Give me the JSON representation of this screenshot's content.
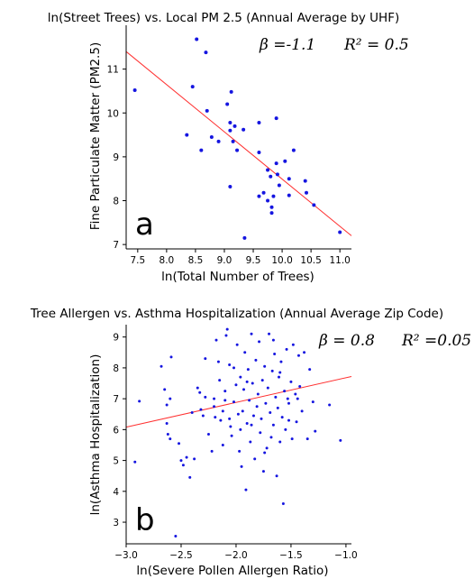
{
  "chart_data": [
    {
      "type": "scatter",
      "panel_letter": "a",
      "title": "ln(Street Trees) vs. Local PM 2.5 (Annual Average by UHF)",
      "xlabel": "ln(Total Number of Trees)",
      "ylabel": "Fine Particulate Matter (PM2.5)",
      "xlim": [
        7.3,
        11.2
      ],
      "ylim": [
        6.9,
        12.0
      ],
      "xticks": [
        7.5,
        8.0,
        8.5,
        9.0,
        9.5,
        10.0,
        10.5,
        11.0
      ],
      "xtick_labels": [
        "7.5",
        "8.0",
        "8.5",
        "9.0",
        "9.5",
        "10.0",
        "10.5",
        "11.0"
      ],
      "yticks": [
        7,
        8,
        9,
        10,
        11
      ],
      "ytick_labels": [
        "7",
        "8",
        "9",
        "10",
        "11"
      ],
      "annotations": {
        "beta_label": "β =-1.1",
        "r2_label": "R² = 0.5"
      },
      "point_color": "#1515e0",
      "fit_line": {
        "color": "#ff3030",
        "x": [
          7.3,
          11.2
        ],
        "y": [
          11.4,
          7.2
        ]
      },
      "points": [
        {
          "x": 7.45,
          "y": 10.52
        },
        {
          "x": 8.45,
          "y": 10.6
        },
        {
          "x": 8.52,
          "y": 11.68
        },
        {
          "x": 8.68,
          "y": 11.38
        },
        {
          "x": 8.7,
          "y": 10.05
        },
        {
          "x": 8.35,
          "y": 9.5
        },
        {
          "x": 8.6,
          "y": 9.15
        },
        {
          "x": 8.78,
          "y": 9.45
        },
        {
          "x": 8.9,
          "y": 9.35
        },
        {
          "x": 9.05,
          "y": 10.2
        },
        {
          "x": 9.12,
          "y": 10.48
        },
        {
          "x": 9.1,
          "y": 9.78
        },
        {
          "x": 9.1,
          "y": 9.6
        },
        {
          "x": 9.18,
          "y": 9.7
        },
        {
          "x": 9.15,
          "y": 9.35
        },
        {
          "x": 9.22,
          "y": 9.15
        },
        {
          "x": 9.33,
          "y": 9.62
        },
        {
          "x": 9.1,
          "y": 8.32
        },
        {
          "x": 9.35,
          "y": 7.15
        },
        {
          "x": 9.6,
          "y": 9.78
        },
        {
          "x": 9.6,
          "y": 9.1
        },
        {
          "x": 9.6,
          "y": 8.1
        },
        {
          "x": 9.68,
          "y": 8.18
        },
        {
          "x": 9.75,
          "y": 8.7
        },
        {
          "x": 9.8,
          "y": 8.55
        },
        {
          "x": 9.75,
          "y": 8.0
        },
        {
          "x": 9.82,
          "y": 7.85
        },
        {
          "x": 9.82,
          "y": 7.72
        },
        {
          "x": 9.85,
          "y": 8.1
        },
        {
          "x": 9.9,
          "y": 9.88
        },
        {
          "x": 9.9,
          "y": 8.85
        },
        {
          "x": 9.92,
          "y": 8.6
        },
        {
          "x": 9.95,
          "y": 8.35
        },
        {
          "x": 10.05,
          "y": 8.9
        },
        {
          "x": 10.12,
          "y": 8.5
        },
        {
          "x": 10.12,
          "y": 8.12
        },
        {
          "x": 10.2,
          "y": 9.15
        },
        {
          "x": 10.4,
          "y": 8.45
        },
        {
          "x": 10.42,
          "y": 8.18
        },
        {
          "x": 10.55,
          "y": 7.9
        },
        {
          "x": 11.0,
          "y": 7.28
        }
      ]
    },
    {
      "type": "scatter",
      "panel_letter": "b",
      "title": "Tree Allergen vs. Asthma Hospitalization (Annual Average Zip Code)",
      "xlabel": "ln(Severe Pollen Allergen Ratio)",
      "ylabel": "ln(Asthma Hospitalization)",
      "xlim": [
        -3.0,
        -0.95
      ],
      "ylim": [
        2.3,
        9.4
      ],
      "xticks": [
        -3.0,
        -2.5,
        -2.0,
        -1.5,
        -1.0
      ],
      "xtick_labels": [
        "−3.0",
        "−2.5",
        "−2.0",
        "−1.5",
        "−1.0"
      ],
      "yticks": [
        3,
        4,
        5,
        6,
        7,
        8,
        9
      ],
      "ytick_labels": [
        "3",
        "4",
        "5",
        "6",
        "7",
        "8",
        "9"
      ],
      "annotations": {
        "beta_label": "β = 0.8",
        "r2_label": "R² =0.05"
      },
      "point_color": "#1515e0",
      "fit_line": {
        "color": "#ff3030",
        "x": [
          -3.0,
          -0.95
        ],
        "y": [
          6.08,
          7.72
        ]
      },
      "points": [
        {
          "x": -2.92,
          "y": 4.95
        },
        {
          "x": -2.88,
          "y": 6.92
        },
        {
          "x": -2.68,
          "y": 8.05
        },
        {
          "x": -2.65,
          "y": 7.3
        },
        {
          "x": -2.63,
          "y": 6.8
        },
        {
          "x": -2.63,
          "y": 6.2
        },
        {
          "x": -2.62,
          "y": 5.85
        },
        {
          "x": -2.6,
          "y": 5.7
        },
        {
          "x": -2.6,
          "y": 7.0
        },
        {
          "x": -2.59,
          "y": 8.35
        },
        {
          "x": -2.55,
          "y": 2.55
        },
        {
          "x": -2.52,
          "y": 5.55
        },
        {
          "x": -2.5,
          "y": 5.0
        },
        {
          "x": -2.48,
          "y": 4.85
        },
        {
          "x": -2.45,
          "y": 5.1
        },
        {
          "x": -2.42,
          "y": 4.45
        },
        {
          "x": -2.4,
          "y": 6.55
        },
        {
          "x": -2.38,
          "y": 5.05
        },
        {
          "x": -2.35,
          "y": 7.35
        },
        {
          "x": -2.33,
          "y": 7.2
        },
        {
          "x": -2.32,
          "y": 6.65
        },
        {
          "x": -2.3,
          "y": 6.45
        },
        {
          "x": -2.28,
          "y": 7.05
        },
        {
          "x": -2.25,
          "y": 5.85
        },
        {
          "x": -2.22,
          "y": 5.3
        },
        {
          "x": -2.2,
          "y": 7.0
        },
        {
          "x": -2.19,
          "y": 6.4
        },
        {
          "x": -2.18,
          "y": 8.9
        },
        {
          "x": -2.16,
          "y": 8.2
        },
        {
          "x": -2.15,
          "y": 7.6
        },
        {
          "x": -2.14,
          "y": 6.3
        },
        {
          "x": -2.12,
          "y": 5.5
        },
        {
          "x": -2.1,
          "y": 6.95
        },
        {
          "x": -2.1,
          "y": 7.25
        },
        {
          "x": -2.09,
          "y": 9.05
        },
        {
          "x": -2.08,
          "y": 9.25
        },
        {
          "x": -2.06,
          "y": 8.1
        },
        {
          "x": -2.05,
          "y": 6.1
        },
        {
          "x": -2.04,
          "y": 5.8
        },
        {
          "x": -2.02,
          "y": 6.9
        },
        {
          "x": -2.0,
          "y": 7.45
        },
        {
          "x": -1.99,
          "y": 8.75
        },
        {
          "x": -1.98,
          "y": 6.5
        },
        {
          "x": -1.97,
          "y": 5.3
        },
        {
          "x": -1.96,
          "y": 7.7
        },
        {
          "x": -1.95,
          "y": 4.8
        },
        {
          "x": -1.94,
          "y": 6.6
        },
        {
          "x": -1.93,
          "y": 7.3
        },
        {
          "x": -1.92,
          "y": 8.5
        },
        {
          "x": -1.91,
          "y": 4.05
        },
        {
          "x": -1.9,
          "y": 6.2
        },
        {
          "x": -1.89,
          "y": 7.95
        },
        {
          "x": -1.88,
          "y": 6.95
        },
        {
          "x": -1.87,
          "y": 5.6
        },
        {
          "x": -1.86,
          "y": 9.1
        },
        {
          "x": -1.85,
          "y": 7.5
        },
        {
          "x": -1.84,
          "y": 6.45
        },
        {
          "x": -1.83,
          "y": 5.05
        },
        {
          "x": -1.82,
          "y": 8.25
        },
        {
          "x": -1.81,
          "y": 6.75
        },
        {
          "x": -1.8,
          "y": 7.15
        },
        {
          "x": -1.79,
          "y": 8.85
        },
        {
          "x": -1.78,
          "y": 5.9
        },
        {
          "x": -1.77,
          "y": 6.35
        },
        {
          "x": -1.76,
          "y": 7.6
        },
        {
          "x": -1.75,
          "y": 4.65
        },
        {
          "x": -1.74,
          "y": 8.05
        },
        {
          "x": -1.73,
          "y": 6.85
        },
        {
          "x": -1.72,
          "y": 5.4
        },
        {
          "x": -1.71,
          "y": 7.35
        },
        {
          "x": -1.7,
          "y": 9.1
        },
        {
          "x": -1.69,
          "y": 6.55
        },
        {
          "x": -1.68,
          "y": 5.75
        },
        {
          "x": -1.67,
          "y": 7.9
        },
        {
          "x": -1.66,
          "y": 6.15
        },
        {
          "x": -1.65,
          "y": 8.45
        },
        {
          "x": -1.64,
          "y": 7.05
        },
        {
          "x": -1.63,
          "y": 4.5
        },
        {
          "x": -1.62,
          "y": 6.7
        },
        {
          "x": -1.61,
          "y": 7.7
        },
        {
          "x": -1.6,
          "y": 5.6
        },
        {
          "x": -1.59,
          "y": 8.2
        },
        {
          "x": -1.58,
          "y": 6.4
        },
        {
          "x": -1.57,
          "y": 3.6
        },
        {
          "x": -1.56,
          "y": 7.25
        },
        {
          "x": -1.55,
          "y": 6.0
        },
        {
          "x": -1.54,
          "y": 8.6
        },
        {
          "x": -1.53,
          "y": 7.0
        },
        {
          "x": -1.52,
          "y": 6.85
        },
        {
          "x": -1.5,
          "y": 7.55
        },
        {
          "x": -1.49,
          "y": 5.7
        },
        {
          "x": -1.48,
          "y": 8.75
        },
        {
          "x": -1.46,
          "y": 7.15
        },
        {
          "x": -1.45,
          "y": 6.25
        },
        {
          "x": -1.43,
          "y": 8.4
        },
        {
          "x": -1.42,
          "y": 7.4
        },
        {
          "x": -1.4,
          "y": 6.6
        },
        {
          "x": -1.38,
          "y": 8.5
        },
        {
          "x": -1.35,
          "y": 5.7
        },
        {
          "x": -1.33,
          "y": 7.95
        },
        {
          "x": -1.3,
          "y": 6.9
        },
        {
          "x": -1.28,
          "y": 5.95
        },
        {
          "x": -1.15,
          "y": 6.8
        },
        {
          "x": -1.05,
          "y": 5.65
        },
        {
          "x": -2.28,
          "y": 8.3
        },
        {
          "x": -2.2,
          "y": 6.75
        },
        {
          "x": -2.02,
          "y": 8.0
        },
        {
          "x": -1.96,
          "y": 6.0
        },
        {
          "x": -1.86,
          "y": 6.15
        },
        {
          "x": -1.74,
          "y": 5.25
        },
        {
          "x": -1.66,
          "y": 8.9
        },
        {
          "x": -1.6,
          "y": 7.85
        },
        {
          "x": -1.52,
          "y": 6.3
        },
        {
          "x": -1.44,
          "y": 7.0
        },
        {
          "x": -2.12,
          "y": 6.6
        },
        {
          "x": -2.06,
          "y": 6.35
        },
        {
          "x": -1.9,
          "y": 7.55
        }
      ]
    }
  ]
}
